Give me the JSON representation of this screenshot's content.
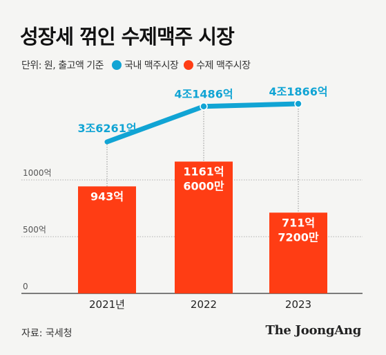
{
  "title": "성장세 꺾인 수제맥주 시장",
  "legend": {
    "unit": "단위: 원, 출고액 기준",
    "items": [
      {
        "label": "국내 맥주시장",
        "color": "#11a4d4"
      },
      {
        "label": "수제 맥주시장",
        "color": "#ff3d14"
      }
    ]
  },
  "source": "자료: 국세청",
  "logo": "The JoongAng",
  "chart_data": {
    "type": "bar+line",
    "categories": [
      "2021년",
      "2022",
      "2023"
    ],
    "y_ticks": [
      {
        "value": 0,
        "label": "0"
      },
      {
        "value": 500,
        "label": "500억"
      },
      {
        "value": 1000,
        "label": "1000억"
      }
    ],
    "bars": {
      "series": "수제 맥주시장",
      "unit": "억",
      "values": [
        943,
        1161.6,
        711.72
      ],
      "labels": [
        [
          "943억"
        ],
        [
          "1161억",
          "6000만"
        ],
        [
          "711억",
          "7200만"
        ]
      ],
      "color": "#ff3d14"
    },
    "line": {
      "series": "국내 맥주시장",
      "unit": "억",
      "values": [
        36261,
        41486,
        41866
      ],
      "labels": [
        "3조6261억",
        "4조1486억",
        "4조1866억"
      ],
      "color": "#11a4d4"
    }
  }
}
